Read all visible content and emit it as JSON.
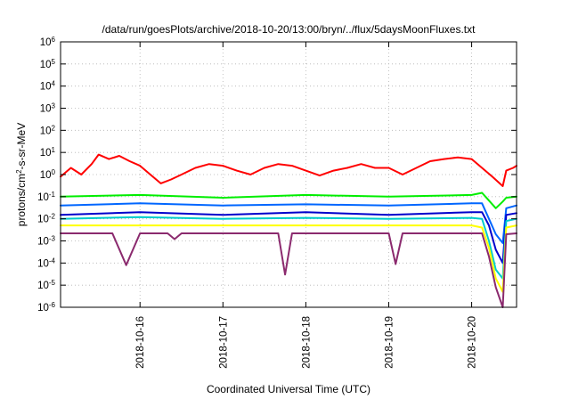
{
  "chart_data": {
    "type": "line",
    "title": "/data/run/goesPlots/archive/2018-10-20/13:00/bryn/../flux/5daysMoonFluxes.txt",
    "xlabel": "Coordinated Universal Time (UTC)",
    "ylabel": {
      "pre": "protons/cm",
      "sup": "2",
      "post": "-s-sr-MeV"
    },
    "x_scale": "time",
    "xlim": [
      "2018-10-15T01:00",
      "2018-10-20T13:00"
    ],
    "x_ticks": [
      "2018-10-16",
      "2018-10-17",
      "2018-10-18",
      "2018-10-19",
      "2018-10-20"
    ],
    "y_scale": "log",
    "ylim": [
      1e-06,
      1000000.0
    ],
    "y_ticks": [
      {
        "value": 1e-06,
        "base": "10",
        "exp": "-6"
      },
      {
        "value": 1e-05,
        "base": "10",
        "exp": "-5"
      },
      {
        "value": 0.0001,
        "base": "10",
        "exp": "-4"
      },
      {
        "value": 0.001,
        "base": "10",
        "exp": "-3"
      },
      {
        "value": 0.01,
        "base": "10",
        "exp": "-2"
      },
      {
        "value": 0.1,
        "base": "10",
        "exp": "-1"
      },
      {
        "value": 1,
        "base": "10",
        "exp": "0"
      },
      {
        "value": 10,
        "base": "10",
        "exp": "1"
      },
      {
        "value": 100,
        "base": "10",
        "exp": "2"
      },
      {
        "value": 1000,
        "base": "10",
        "exp": "3"
      },
      {
        "value": 10000,
        "base": "10",
        "exp": "4"
      },
      {
        "value": 100000,
        "base": "10",
        "exp": "5"
      },
      {
        "value": 1000000,
        "base": "10",
        "exp": "6"
      }
    ],
    "grid": true,
    "legend": "none",
    "series": [
      {
        "color": "#ff0000",
        "points": [
          [
            "2018-10-15T01:00",
            0.8
          ],
          [
            "2018-10-15T04:00",
            2.0
          ],
          [
            "2018-10-15T07:00",
            1.0
          ],
          [
            "2018-10-15T10:00",
            3.0
          ],
          [
            "2018-10-15T12:00",
            8.0
          ],
          [
            "2018-10-15T15:00",
            5.0
          ],
          [
            "2018-10-15T18:00",
            7.0
          ],
          [
            "2018-10-15T21:00",
            4.0
          ],
          [
            "2018-10-16T00:00",
            2.5
          ],
          [
            "2018-10-16T03:00",
            1.0
          ],
          [
            "2018-10-16T06:00",
            0.4
          ],
          [
            "2018-10-16T09:00",
            0.6
          ],
          [
            "2018-10-16T12:00",
            1.0
          ],
          [
            "2018-10-16T16:00",
            2.0
          ],
          [
            "2018-10-16T20:00",
            3.0
          ],
          [
            "2018-10-17T00:00",
            2.5
          ],
          [
            "2018-10-17T04:00",
            1.5
          ],
          [
            "2018-10-17T08:00",
            1.0
          ],
          [
            "2018-10-17T12:00",
            2.0
          ],
          [
            "2018-10-17T16:00",
            3.0
          ],
          [
            "2018-10-17T20:00",
            2.5
          ],
          [
            "2018-10-18T00:00",
            1.5
          ],
          [
            "2018-10-18T04:00",
            0.9
          ],
          [
            "2018-10-18T08:00",
            1.5
          ],
          [
            "2018-10-18T12:00",
            2.0
          ],
          [
            "2018-10-18T16:00",
            3.0
          ],
          [
            "2018-10-18T20:00",
            2.0
          ],
          [
            "2018-10-19T00:00",
            2.0
          ],
          [
            "2018-10-19T04:00",
            1.0
          ],
          [
            "2018-10-19T08:00",
            2.0
          ],
          [
            "2018-10-19T12:00",
            4.0
          ],
          [
            "2018-10-19T16:00",
            5.0
          ],
          [
            "2018-10-19T20:00",
            6.0
          ],
          [
            "2018-10-20T00:00",
            5.0
          ],
          [
            "2018-10-20T03:00",
            2.0
          ],
          [
            "2018-10-20T06:00",
            0.8
          ],
          [
            "2018-10-20T09:00",
            0.3
          ],
          [
            "2018-10-20T10:00",
            1.5
          ],
          [
            "2018-10-20T12:00",
            2.0
          ],
          [
            "2018-10-20T13:00",
            2.5
          ]
        ]
      },
      {
        "color": "#00ee00",
        "points": [
          [
            "2018-10-15T01:00",
            0.1
          ],
          [
            "2018-10-16T00:00",
            0.12
          ],
          [
            "2018-10-17T00:00",
            0.09
          ],
          [
            "2018-10-18T00:00",
            0.12
          ],
          [
            "2018-10-19T00:00",
            0.1
          ],
          [
            "2018-10-20T00:00",
            0.12
          ],
          [
            "2018-10-20T03:00",
            0.15
          ],
          [
            "2018-10-20T04:00",
            0.1
          ],
          [
            "2018-10-20T07:00",
            0.03
          ],
          [
            "2018-10-20T09:00",
            0.06
          ],
          [
            "2018-10-20T10:00",
            0.09
          ],
          [
            "2018-10-20T13:00",
            0.1
          ]
        ]
      },
      {
        "color": "#0066ff",
        "points": [
          [
            "2018-10-15T01:00",
            0.04
          ],
          [
            "2018-10-16T00:00",
            0.05
          ],
          [
            "2018-10-17T00:00",
            0.04
          ],
          [
            "2018-10-18T00:00",
            0.045
          ],
          [
            "2018-10-19T00:00",
            0.04
          ],
          [
            "2018-10-20T00:00",
            0.05
          ],
          [
            "2018-10-20T03:00",
            0.05
          ],
          [
            "2018-10-20T05:00",
            0.01
          ],
          [
            "2018-10-20T07:00",
            0.002
          ],
          [
            "2018-10-20T09:00",
            0.0008
          ],
          [
            "2018-10-20T10:00",
            0.03
          ],
          [
            "2018-10-20T13:00",
            0.04
          ]
        ]
      },
      {
        "color": "#0000cc",
        "points": [
          [
            "2018-10-15T01:00",
            0.015
          ],
          [
            "2018-10-16T00:00",
            0.02
          ],
          [
            "2018-10-17T00:00",
            0.015
          ],
          [
            "2018-10-18T00:00",
            0.02
          ],
          [
            "2018-10-19T00:00",
            0.015
          ],
          [
            "2018-10-20T00:00",
            0.02
          ],
          [
            "2018-10-20T03:00",
            0.02
          ],
          [
            "2018-10-20T05:00",
            0.005
          ],
          [
            "2018-10-20T07:00",
            0.0004
          ],
          [
            "2018-10-20T09:00",
            0.0001
          ],
          [
            "2018-10-20T10:00",
            0.015
          ],
          [
            "2018-10-20T13:00",
            0.018
          ]
        ]
      },
      {
        "color": "#00cccc",
        "points": [
          [
            "2018-10-15T01:00",
            0.01
          ],
          [
            "2018-10-16T00:00",
            0.012
          ],
          [
            "2018-10-17T00:00",
            0.01
          ],
          [
            "2018-10-18T00:00",
            0.011
          ],
          [
            "2018-10-19T00:00",
            0.01
          ],
          [
            "2018-10-20T00:00",
            0.011
          ],
          [
            "2018-10-20T03:00",
            0.01
          ],
          [
            "2018-10-20T05:00",
            0.001
          ],
          [
            "2018-10-20T07:00",
            5e-05
          ],
          [
            "2018-10-20T09:00",
            2e-05
          ],
          [
            "2018-10-20T10:00",
            0.008
          ],
          [
            "2018-10-20T13:00",
            0.01
          ]
        ]
      },
      {
        "color": "#ffff00",
        "points": [
          [
            "2018-10-15T01:00",
            0.005
          ],
          [
            "2018-10-16T00:00",
            0.005
          ],
          [
            "2018-10-17T00:00",
            0.005
          ],
          [
            "2018-10-18T00:00",
            0.005
          ],
          [
            "2018-10-19T00:00",
            0.005
          ],
          [
            "2018-10-20T00:00",
            0.005
          ],
          [
            "2018-10-20T03:00",
            0.004
          ],
          [
            "2018-10-20T05:00",
            0.0005
          ],
          [
            "2018-10-20T07:00",
            2e-05
          ],
          [
            "2018-10-20T09:00",
            5e-06
          ],
          [
            "2018-10-20T10:00",
            0.004
          ],
          [
            "2018-10-20T13:00",
            0.005
          ]
        ]
      },
      {
        "color": "#8b2a6e",
        "points": [
          [
            "2018-10-15T01:00",
            0.0022
          ],
          [
            "2018-10-15T16:00",
            0.0022
          ],
          [
            "2018-10-15T20:00",
            8e-05
          ],
          [
            "2018-10-16T00:00",
            0.0022
          ],
          [
            "2018-10-16T08:00",
            0.0022
          ],
          [
            "2018-10-16T10:00",
            0.0012
          ],
          [
            "2018-10-16T12:00",
            0.0022
          ],
          [
            "2018-10-17T16:00",
            0.0022
          ],
          [
            "2018-10-17T18:00",
            3e-05
          ],
          [
            "2018-10-17T20:00",
            0.0022
          ],
          [
            "2018-10-19T00:00",
            0.0022
          ],
          [
            "2018-10-19T02:00",
            9e-05
          ],
          [
            "2018-10-19T04:00",
            0.0022
          ],
          [
            "2018-10-20T03:00",
            0.0022
          ],
          [
            "2018-10-20T05:00",
            0.0002
          ],
          [
            "2018-10-20T07:00",
            8e-06
          ],
          [
            "2018-10-20T09:00",
            1e-06
          ],
          [
            "2018-10-20T10:00",
            0.002
          ],
          [
            "2018-10-20T13:00",
            0.0022
          ]
        ]
      }
    ]
  }
}
